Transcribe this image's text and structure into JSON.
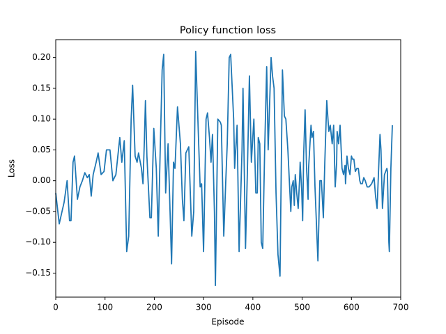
{
  "chart_data": {
    "type": "line",
    "title": "Policy function loss",
    "x_label": "Episode",
    "y_label": "Loss",
    "series": [
      {
        "name": "loss",
        "color": "#1f77b4",
        "x": [
          0,
          7,
          17,
          23,
          28,
          31,
          35,
          38,
          44,
          49,
          54,
          59,
          64,
          68,
          72,
          76,
          82,
          86,
          92,
          98,
          103,
          110,
          116,
          122,
          130,
          134,
          139,
          144,
          148,
          153,
          156,
          161,
          165,
          168,
          174,
          177,
          180,
          182,
          185,
          191,
          194,
          199,
          204,
          208,
          212,
          216,
          219,
          223,
          228,
          235,
          239,
          242,
          247,
          253,
          257,
          260,
          264,
          267,
          270,
          276,
          280,
          284,
          290,
          293,
          296,
          300,
          305,
          308,
          312,
          315,
          318,
          322,
          324,
          329,
          334,
          336,
          341,
          345,
          348,
          352,
          355,
          361,
          363,
          368,
          372,
          378,
          380,
          385,
          389,
          393,
          397,
          402,
          406,
          409,
          411,
          414,
          417,
          420,
          424,
          428,
          431,
          437,
          440,
          443,
          447,
          451,
          455,
          460,
          464,
          467,
          471,
          477,
          479,
          482,
          484,
          486,
          489,
          492,
          495,
          496,
          499,
          501,
          503,
          506,
          509,
          512,
          513,
          518,
          520,
          523,
          526,
          532,
          536,
          539,
          543,
          546,
          550,
          554,
          557,
          561,
          564,
          567,
          570,
          571,
          574,
          577,
          581,
          584,
          587,
          588,
          591,
          594,
          597,
          600,
          602,
          605,
          608,
          611,
          614,
          617,
          619,
          622,
          625,
          628,
          632,
          636,
          641,
          646,
          649,
          652,
          658,
          660,
          663,
          667,
          672,
          673,
          676,
          677,
          680,
          683
        ],
        "values": [
          -0.02,
          -0.07,
          -0.035,
          0.0,
          -0.065,
          -0.065,
          0.03,
          0.04,
          -0.03,
          -0.01,
          0.0,
          0.013,
          0.005,
          0.01,
          -0.025,
          0.01,
          0.03,
          0.045,
          0.01,
          0.015,
          0.05,
          0.05,
          0.0,
          0.01,
          0.07,
          0.03,
          0.065,
          -0.115,
          -0.09,
          0.1,
          0.155,
          0.04,
          0.03,
          0.045,
          0.02,
          -0.005,
          0.07,
          0.13,
          0.04,
          -0.06,
          -0.06,
          0.085,
          0.02,
          -0.09,
          0.05,
          0.18,
          0.205,
          -0.02,
          0.06,
          -0.135,
          0.03,
          0.02,
          0.12,
          0.06,
          -0.03,
          -0.065,
          0.045,
          0.05,
          0.055,
          -0.09,
          -0.05,
          0.21,
          0.06,
          -0.01,
          -0.005,
          -0.115,
          0.1,
          0.11,
          0.07,
          0.03,
          0.075,
          -0.05,
          -0.17,
          0.1,
          0.095,
          0.09,
          -0.09,
          0.0,
          0.06,
          0.2,
          0.205,
          0.1,
          0.02,
          0.09,
          -0.115,
          0.05,
          0.15,
          -0.11,
          0.02,
          0.17,
          0.03,
          0.1,
          -0.02,
          -0.02,
          0.07,
          0.06,
          -0.1,
          -0.11,
          0.05,
          0.185,
          0.05,
          0.2,
          0.17,
          0.15,
          -0.02,
          -0.12,
          -0.155,
          0.18,
          0.105,
          0.1,
          0.05,
          -0.05,
          -0.01,
          0.0,
          -0.04,
          0.01,
          -0.02,
          -0.045,
          0.005,
          0.03,
          -0.015,
          -0.065,
          0.04,
          0.115,
          0.02,
          -0.03,
          0.02,
          0.09,
          0.07,
          0.08,
          -0.01,
          -0.13,
          0.0,
          0.0,
          -0.06,
          0.03,
          0.13,
          0.08,
          0.09,
          0.06,
          0.09,
          -0.01,
          0.03,
          0.08,
          0.06,
          0.09,
          0.02,
          0.01,
          0.025,
          -0.005,
          0.04,
          0.02,
          0.01,
          0.04,
          0.035,
          0.035,
          0.015,
          0.02,
          0.02,
          0.0,
          -0.005,
          -0.005,
          0.005,
          0.0,
          -0.01,
          -0.01,
          -0.005,
          0.005,
          -0.025,
          -0.045,
          0.075,
          0.05,
          -0.045,
          0.01,
          0.02,
          0.015,
          -0.1,
          -0.115,
          0.02,
          0.09
        ]
      }
    ],
    "xlim": [
      0,
      700
    ],
    "xticks": [
      0,
      100,
      200,
      300,
      400,
      500,
      600,
      700
    ],
    "ylim": [
      -0.189,
      0.229
    ],
    "yticks": [
      {
        "value": -0.15,
        "label": "−0.15"
      },
      {
        "value": -0.1,
        "label": "−0.10"
      },
      {
        "value": -0.05,
        "label": "−0.05"
      },
      {
        "value": 0,
        "label": "0.00"
      },
      {
        "value": 0.05,
        "label": "0.05"
      },
      {
        "value": 0.1,
        "label": "0.10"
      },
      {
        "value": 0.15,
        "label": "0.15"
      },
      {
        "value": 0.2,
        "label": "0.20"
      }
    ]
  }
}
